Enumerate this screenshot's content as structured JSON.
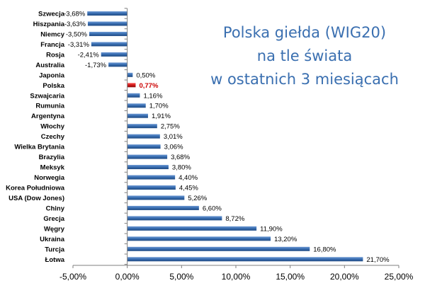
{
  "chart_data": {
    "type": "bar",
    "orientation": "horizontal",
    "title_lines": [
      "Polska giełda (WIG20)",
      "na tle świata",
      "w ostatnich 3 miesiącach"
    ],
    "categories": [
      "Szwecja",
      "Hiszpania",
      "Niemcy",
      "Francja",
      "Rosja",
      "Australia",
      "Japonia",
      "Polska",
      "Szwajcaria",
      "Rumunia",
      "Argentyna",
      "Włochy",
      "Czechy",
      "Wielka Brytania",
      "Brazylia",
      "Meksyk",
      "Norwegia",
      "Korea Południowa",
      "USA (Dow Jones)",
      "Chiny",
      "Grecja",
      "Węgry",
      "Ukraina",
      "Turcja",
      "Łotwa"
    ],
    "values": [
      -3.68,
      -3.63,
      -3.5,
      -3.31,
      -2.41,
      -1.73,
      0.5,
      0.77,
      1.16,
      1.7,
      1.91,
      2.75,
      3.01,
      3.06,
      3.68,
      3.8,
      4.4,
      4.45,
      5.26,
      6.6,
      8.72,
      11.9,
      13.2,
      16.8,
      21.7
    ],
    "value_labels": [
      "-3,68%",
      "-3,63%",
      "-3,50%",
      "-3,31%",
      "-2,41%",
      "-1,73%",
      "0,50%",
      "0,77%",
      "1,16%",
      "1,70%",
      "1,91%",
      "2,75%",
      "3,01%",
      "3,06%",
      "3,68%",
      "3,80%",
      "4,40%",
      "4,45%",
      "5,26%",
      "6,60%",
      "8,72%",
      "11,90%",
      "13,20%",
      "16,80%",
      "21,70%"
    ],
    "xlim": [
      -5,
      25
    ],
    "xticks": [
      -5,
      0,
      5,
      10,
      15,
      20,
      25
    ],
    "xtick_labels": [
      "-5,00%",
      "0,00%",
      "5,00%",
      "10,00%",
      "15,00%",
      "20,00%",
      "25,00%"
    ],
    "highlight_category": "Polska",
    "grid": false,
    "legend": "none",
    "colors": {
      "bar": "#3a6fb3",
      "bar_dark": "#1f4a82",
      "highlight": "#d21a1a",
      "title": "#3a6fb0",
      "label_highlight": "#cc0000"
    }
  }
}
